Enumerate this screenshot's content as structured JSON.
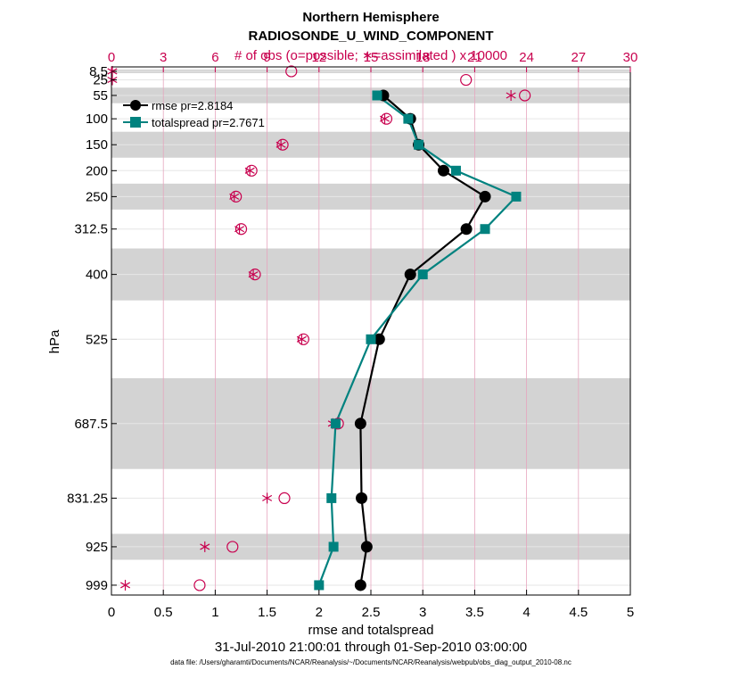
{
  "chart_data": {
    "type": "line",
    "title": "Northern Hemisphere",
    "subtitle": "RADIOSONDE_U_WIND_COMPONENT",
    "top_axis_label": "# of obs (o=possible; ∗=assimilated ) x 10000",
    "xlabel": "rmse and totalspread",
    "ylabel": "hPa",
    "date_range": "31-Jul-2010 21:00:01 through 01-Sep-2010 03:00:00",
    "footer": "data file: /Users/gharamti/Documents/NCAR/Reanalysis/~/Documents/NCAR/Reanalysis/webpub/obs_diag_output_2010-08.nc",
    "xlim": [
      0,
      5
    ],
    "x_ticks": [
      "0",
      "0.5",
      "1",
      "1.5",
      "2",
      "2.5",
      "3",
      "3.5",
      "4",
      "4.5",
      "5"
    ],
    "top_xlim": [
      0,
      30
    ],
    "top_ticks": [
      "0",
      "3",
      "6",
      "9",
      "12",
      "15",
      "18",
      "21",
      "24",
      "27",
      "30"
    ],
    "y_levels": [
      8.5,
      25,
      55,
      100,
      150,
      200,
      250,
      312.5,
      400,
      525,
      687.5,
      831.25,
      925,
      999
    ],
    "y_tick_labels": [
      "8.5",
      "25",
      "55",
      "100",
      "150",
      "200",
      "250",
      "312.5",
      "400",
      "525",
      "687.5",
      "831.25",
      "925",
      "999"
    ],
    "shaded_bands": [
      [
        5,
        12
      ],
      [
        40,
        70
      ],
      [
        125,
        175
      ],
      [
        225,
        275
      ],
      [
        350,
        450
      ],
      [
        600,
        775
      ],
      [
        900,
        950
      ]
    ],
    "series": [
      {
        "name": "rmse",
        "legend": "rmse pr=2.8184",
        "color": "#000000",
        "marker": "circle",
        "levels": [
          55,
          100,
          150,
          200,
          250,
          312.5,
          400,
          525,
          687.5,
          831.25,
          925,
          999
        ],
        "values": [
          2.62,
          2.88,
          2.96,
          3.2,
          3.6,
          3.42,
          2.88,
          2.58,
          2.4,
          2.41,
          2.46,
          2.4
        ]
      },
      {
        "name": "totalspread",
        "legend": "totalspread pr=2.7671",
        "color": "#00827f",
        "marker": "square",
        "levels": [
          55,
          100,
          150,
          200,
          250,
          312.5,
          400,
          525,
          687.5,
          831.25,
          925,
          999
        ],
        "values": [
          2.56,
          2.86,
          2.96,
          3.32,
          3.9,
          3.6,
          3.0,
          2.5,
          2.16,
          2.12,
          2.14,
          2.0
        ]
      }
    ],
    "obs_possible": {
      "levels": [
        8.5,
        25,
        55,
        100,
        150,
        200,
        250,
        312.5,
        400,
        525,
        687.5,
        831.25,
        925,
        999
      ],
      "values": [
        10.4,
        20.5,
        23.9,
        15.9,
        9.9,
        8.1,
        7.2,
        7.5,
        8.3,
        11.1,
        13.1,
        10.0,
        7.0,
        5.1
      ]
    },
    "obs_assimilated": {
      "levels": [
        8.5,
        25,
        55,
        100,
        150,
        200,
        250,
        312.5,
        400,
        525,
        687.5,
        831.25,
        925,
        999
      ],
      "values": [
        0.05,
        0.05,
        23.1,
        15.8,
        9.8,
        8.0,
        7.1,
        7.4,
        8.2,
        11.0,
        12.8,
        9.0,
        5.4,
        0.8
      ]
    },
    "colors": {
      "obs": "#c8004e",
      "band": "#d3d3d3",
      "grid": "#e6e6e6",
      "top_grid": "#e7a6bf"
    }
  }
}
